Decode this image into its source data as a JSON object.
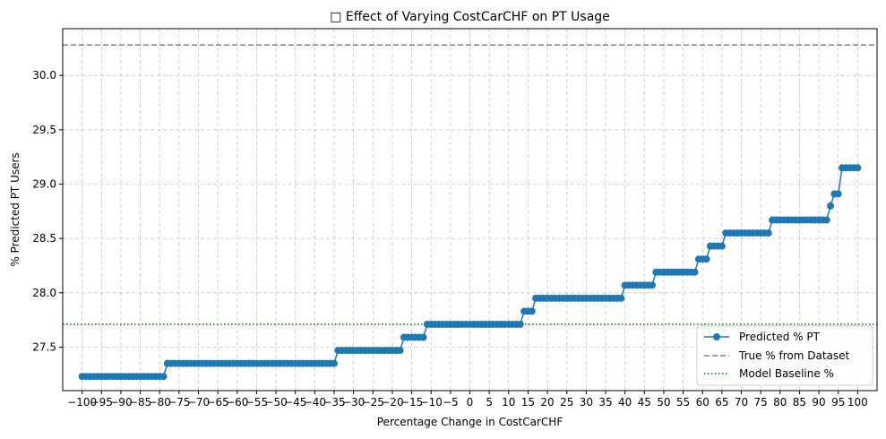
{
  "chart_data": {
    "type": "line",
    "title": "□ Effect of Varying CostCarCHF on PT Usage",
    "xlabel": "Percentage Change in CostCarCHF",
    "ylabel": "% Predicted PT Users",
    "xlim": [
      -105,
      105
    ],
    "ylim": [
      27.1,
      30.43
    ],
    "grid": true,
    "legend_position": "bottom-right",
    "x_tick_labels": [
      "−100",
      "−95",
      "−90",
      "−85",
      "−80",
      "−75",
      "−70",
      "−65",
      "−60",
      "−55",
      "−50",
      "−45",
      "−40",
      "−35",
      "−30",
      "−25",
      "−20",
      "−15",
      "−10",
      "−5",
      "0",
      "5",
      "10",
      "15",
      "20",
      "25",
      "30",
      "35",
      "40",
      "45",
      "50",
      "55",
      "60",
      "65",
      "70",
      "75",
      "80",
      "85",
      "90",
      "95",
      "100"
    ],
    "y_ticks": [
      27.5,
      28.0,
      28.5,
      29.0,
      29.5,
      30.0
    ],
    "y_tick_labels": [
      "27.5",
      "28.0",
      "28.5",
      "29.0",
      "29.5",
      "30.0"
    ],
    "series": [
      {
        "name": "Predicted % PT",
        "style": "line-marker",
        "color": "#1f77b4",
        "step_segments": [
          {
            "x_start": -100,
            "x_end": -79,
            "y": 27.23
          },
          {
            "x_start": -78,
            "x_end": -35,
            "y": 27.35
          },
          {
            "x_start": -34,
            "x_end": -18,
            "y": 27.47
          },
          {
            "x_start": -17,
            "x_end": -12,
            "y": 27.59
          },
          {
            "x_start": -11,
            "x_end": 13,
            "y": 27.71
          },
          {
            "x_start": 14,
            "x_end": 16,
            "y": 27.83
          },
          {
            "x_start": 17,
            "x_end": 39,
            "y": 27.95
          },
          {
            "x_start": 40,
            "x_end": 47,
            "y": 28.07
          },
          {
            "x_start": 48,
            "x_end": 58,
            "y": 28.19
          },
          {
            "x_start": 59,
            "x_end": 61,
            "y": 28.31
          },
          {
            "x_start": 62,
            "x_end": 65,
            "y": 28.43
          },
          {
            "x_start": 66,
            "x_end": 77,
            "y": 28.55
          },
          {
            "x_start": 78,
            "x_end": 92,
            "y": 28.67
          },
          {
            "x_start": 93,
            "x_end": 93,
            "y": 28.8
          },
          {
            "x_start": 94,
            "x_end": 95,
            "y": 28.91
          },
          {
            "x_start": 96,
            "x_end": 100,
            "y": 29.15
          }
        ]
      },
      {
        "name": "True % from Dataset",
        "style": "dashed",
        "color": "#808080",
        "y": 30.28
      },
      {
        "name": "Model Baseline %",
        "style": "dotted",
        "color": "#008000",
        "y": 27.71
      }
    ]
  }
}
